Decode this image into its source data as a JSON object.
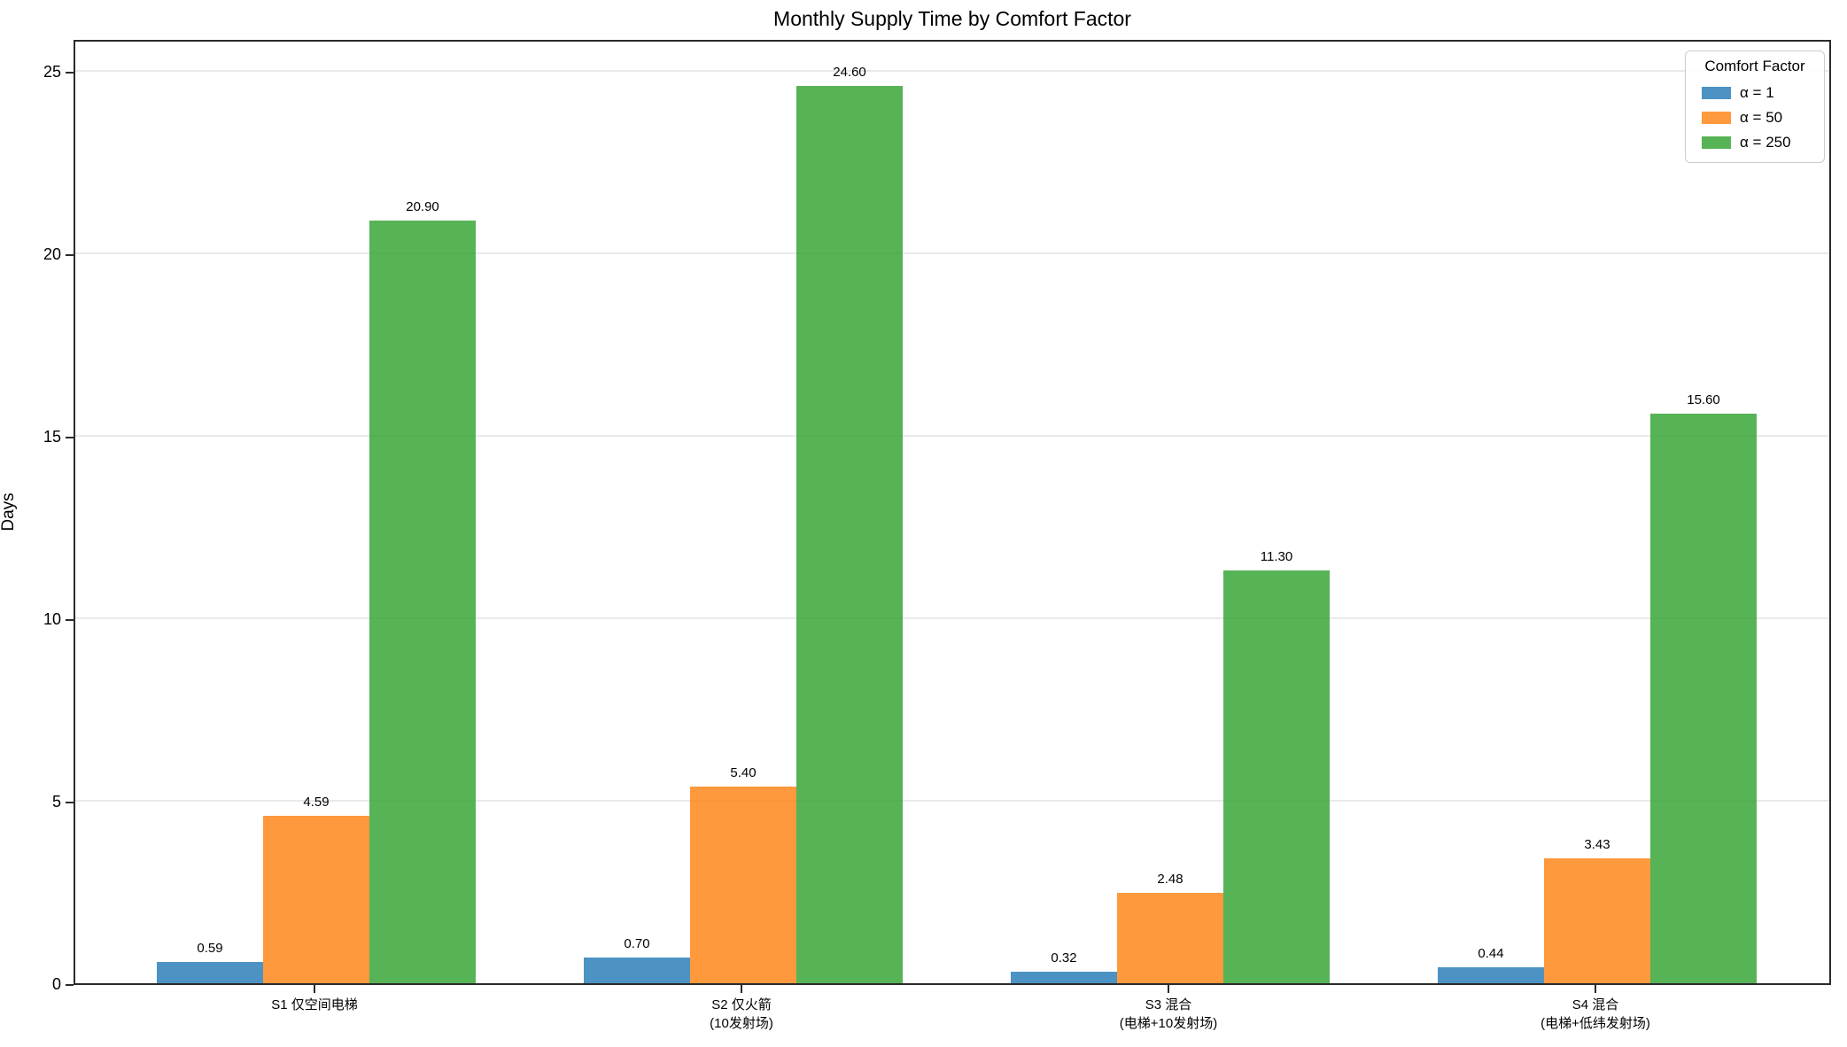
{
  "title": "Monthly Supply Time by Comfort Factor",
  "chart_data": {
    "type": "bar",
    "title": "Monthly Supply Time by Comfort Factor",
    "xlabel": "",
    "ylabel": "Days",
    "ylim": [
      0,
      25.9
    ],
    "yticks": [
      0,
      5,
      10,
      15,
      20,
      25
    ],
    "grid": "horizontal-only",
    "bar_alpha": 0.8,
    "legend": {
      "title": "Comfort Factor",
      "position": "upper right"
    },
    "categories": [
      "S1 仅空间电梯",
      "S2 仅火箭\n(10发射场)",
      "S3 混合\n(电梯+10发射场)",
      "S4 混合\n(电梯+低纬发射场)"
    ],
    "series": [
      {
        "name": "α = 1",
        "color": "#1f77b4",
        "values": [
          0.59,
          0.7,
          0.32,
          0.44
        ]
      },
      {
        "name": "α = 50",
        "color": "#ff7f0e",
        "values": [
          4.59,
          5.4,
          2.48,
          3.43
        ]
      },
      {
        "name": "α = 250",
        "color": "#2ca02c",
        "values": [
          20.9,
          24.6,
          11.3,
          15.6
        ]
      }
    ],
    "bar_value_labels": [
      [
        "0.59",
        "0.70",
        "0.32",
        "0.44"
      ],
      [
        "4.59",
        "5.40",
        "2.48",
        "3.43"
      ],
      [
        "20.90",
        "24.60",
        "11.30",
        "15.60"
      ]
    ]
  }
}
